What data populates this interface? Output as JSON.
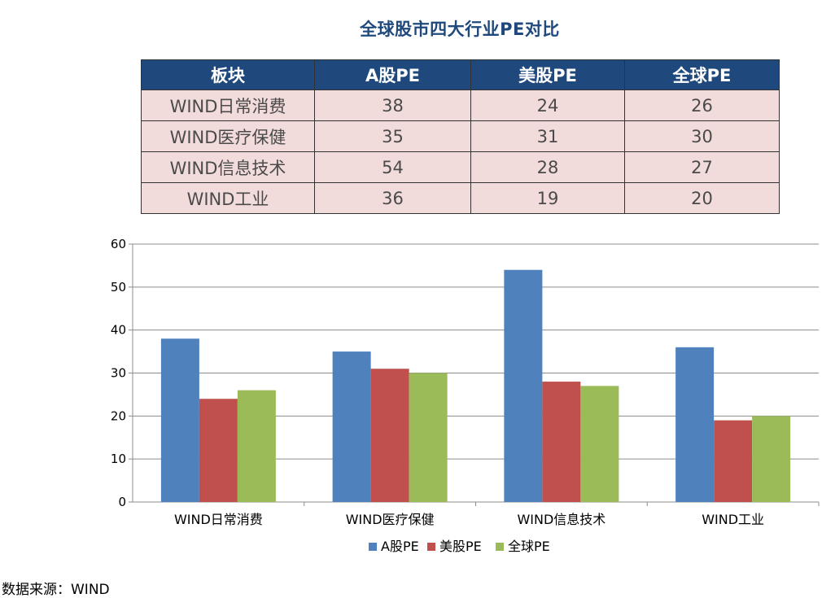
{
  "title": "全球股市四大行业PE对比",
  "table": {
    "headers": [
      "板块",
      "A股PE",
      "美股PE",
      "全球PE"
    ],
    "rows": [
      [
        "WIND日常消费",
        "38",
        "24",
        "26"
      ],
      [
        "WIND医疗保健",
        "35",
        "31",
        "30"
      ],
      [
        "WIND信息技术",
        "54",
        "28",
        "27"
      ],
      [
        "WIND工业",
        "36",
        "19",
        "20"
      ]
    ]
  },
  "chart_data": {
    "type": "bar",
    "categories": [
      "WIND日常消费",
      "WIND医疗保健",
      "WIND信息技术",
      "WIND工业"
    ],
    "series": [
      {
        "name": "A股PE",
        "values": [
          38,
          35,
          54,
          36
        ],
        "color": "#4f81bd"
      },
      {
        "name": "美股PE",
        "values": [
          24,
          31,
          28,
          19
        ],
        "color": "#c0504d"
      },
      {
        "name": "全球PE",
        "values": [
          26,
          30,
          27,
          20
        ],
        "color": "#9bbb59"
      }
    ],
    "ylim": [
      0,
      60
    ],
    "yticks": [
      0,
      10,
      20,
      30,
      40,
      50,
      60
    ],
    "grid": true,
    "legend": "bottom"
  },
  "source": "数据来源：WIND"
}
